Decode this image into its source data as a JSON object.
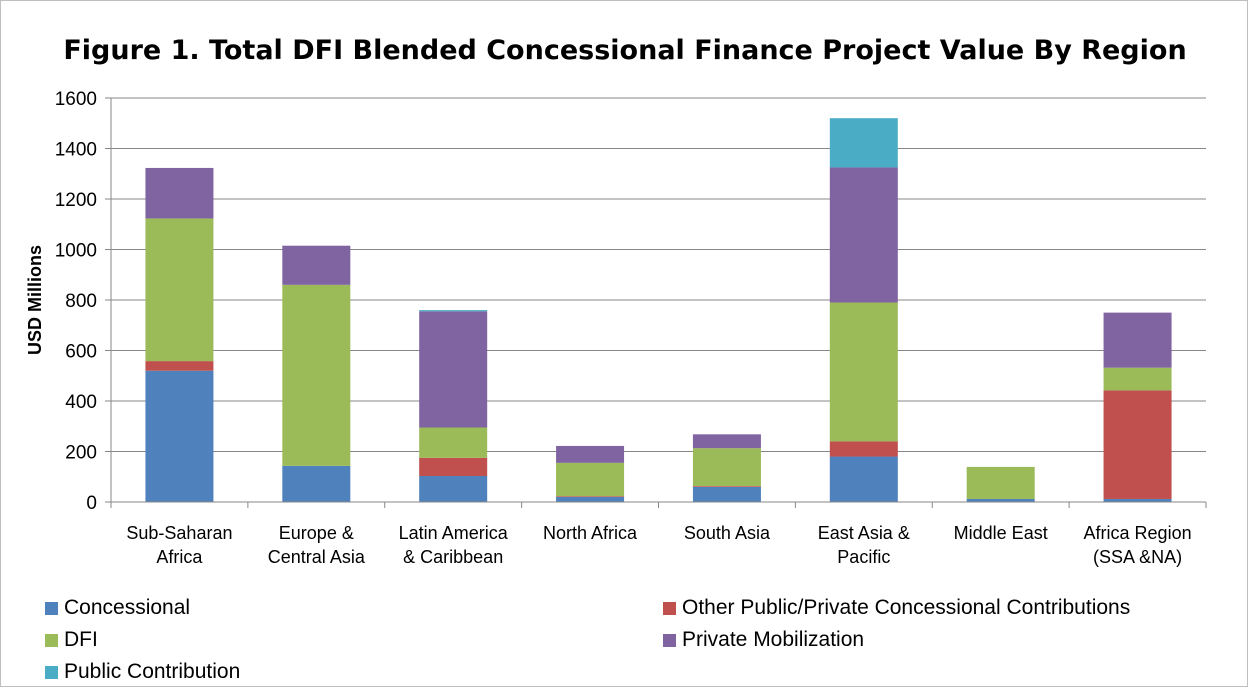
{
  "chart_data": {
    "type": "bar",
    "stacked": true,
    "title": "Figure 1. Total DFI Blended Concessional Finance Project Value By Region",
    "xlabel": "",
    "ylabel": "USD Millions",
    "ylim": [
      0,
      1600
    ],
    "yticks": [
      0,
      200,
      400,
      600,
      800,
      1000,
      1200,
      1400,
      1600
    ],
    "grid": true,
    "legend_position": "bottom",
    "categories": [
      [
        "Sub-Saharan",
        "Africa"
      ],
      [
        "Europe &",
        "Central Asia"
      ],
      [
        "Latin America",
        "& Caribbean"
      ],
      [
        "North Africa"
      ],
      [
        "South Asia"
      ],
      [
        "East Asia &",
        "Pacific"
      ],
      [
        "Middle East"
      ],
      [
        "Africa Region",
        "(SSA &NA)"
      ]
    ],
    "series": [
      {
        "name": "Concessional",
        "color": "#4f81bd",
        "values": [
          520,
          143,
          103,
          20,
          60,
          180,
          12,
          12
        ]
      },
      {
        "name": "Other Public/Private Concessional Contributions",
        "color": "#c0504d",
        "values": [
          38,
          0,
          72,
          3,
          3,
          60,
          0,
          430
        ]
      },
      {
        "name": "DFI",
        "color": "#9bbb59",
        "values": [
          565,
          717,
          120,
          132,
          150,
          550,
          127,
          90
        ]
      },
      {
        "name": "Private Mobilization",
        "color": "#8064a2",
        "values": [
          200,
          155,
          460,
          67,
          55,
          535,
          0,
          218
        ]
      },
      {
        "name": "Public Contribution",
        "color": "#4bacc6",
        "values": [
          0,
          0,
          5,
          0,
          0,
          195,
          0,
          0
        ]
      }
    ]
  }
}
